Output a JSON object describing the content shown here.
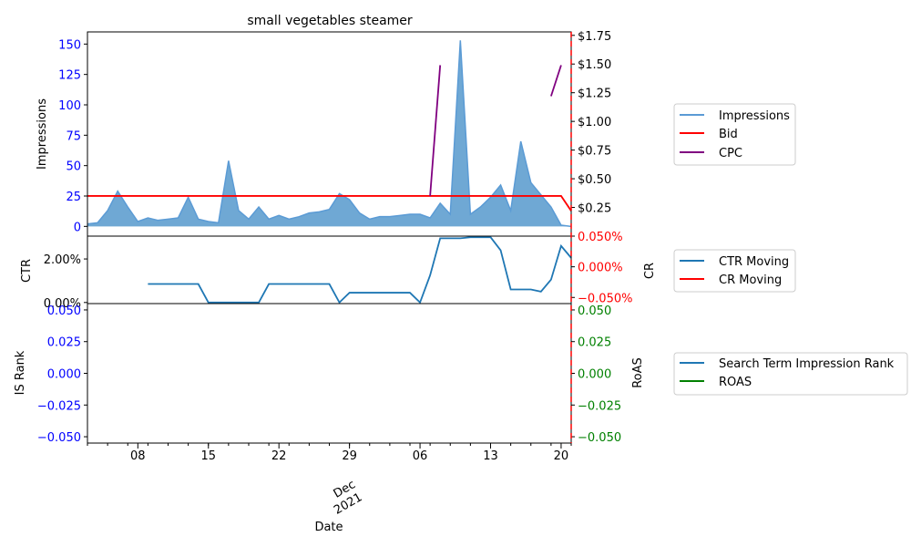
{
  "chart_data": [
    {
      "type": "area",
      "title": "small vegetables steamer",
      "ylabel": "Impressions",
      "y2label": "",
      "ylim": [
        -8,
        160
      ],
      "y2lim": [
        0.0,
        1.78
      ],
      "yticks": [
        "0",
        "25",
        "50",
        "75",
        "100",
        "125",
        "150"
      ],
      "y2ticks": [
        "$0.25",
        "$0.50",
        "$0.75",
        "$1.00",
        "$1.25",
        "$1.50",
        "$1.75"
      ],
      "tick_color": "blue",
      "legend": [
        "Impressions",
        "Bid",
        "CPC"
      ],
      "legend_position": "right",
      "series": [
        {
          "name": "Impressions",
          "color": "#5b9bd5",
          "fill": "#6fa8d4",
          "dates": [
            "2021-11-03",
            "2021-11-04",
            "2021-11-05",
            "2021-11-06",
            "2021-11-07",
            "2021-11-08",
            "2021-11-09",
            "2021-11-10",
            "2021-11-11",
            "2021-11-12",
            "2021-11-13",
            "2021-11-14",
            "2021-11-15",
            "2021-11-16",
            "2021-11-17",
            "2021-11-18",
            "2021-11-19",
            "2021-11-20",
            "2021-11-21",
            "2021-11-22",
            "2021-11-23",
            "2021-11-24",
            "2021-11-25",
            "2021-11-26",
            "2021-11-27",
            "2021-11-28",
            "2021-11-29",
            "2021-11-30",
            "2021-12-01",
            "2021-12-02",
            "2021-12-03",
            "2021-12-04",
            "2021-12-05",
            "2021-12-06",
            "2021-12-07",
            "2021-12-08",
            "2021-12-09",
            "2021-12-10",
            "2021-12-11",
            "2021-12-12",
            "2021-12-13",
            "2021-12-14",
            "2021-12-15",
            "2021-12-16",
            "2021-12-17",
            "2021-12-18",
            "2021-12-19",
            "2021-12-20",
            "2021-12-21"
          ],
          "values": [
            2,
            3,
            13,
            29,
            16,
            4,
            7,
            5,
            6,
            7,
            24,
            6,
            4,
            3,
            54,
            13,
            6,
            16,
            6,
            9,
            6,
            8,
            11,
            12,
            14,
            27,
            22,
            11,
            6,
            8,
            8,
            9,
            10,
            10,
            7,
            19,
            10,
            153,
            10,
            16,
            24,
            34,
            13,
            70,
            36,
            26,
            16,
            1,
            0
          ]
        },
        {
          "name": "Bid",
          "color": "#ff0000",
          "dates": [
            "2021-11-03",
            "2021-12-20",
            "2021-12-21"
          ],
          "values": [
            0.35,
            0.35,
            0.22
          ]
        },
        {
          "name": "CPC",
          "color": "#800080",
          "segments": [
            {
              "dates": [
                "2021-12-07",
                "2021-12-08"
              ],
              "values": [
                0.35,
                1.49
              ]
            },
            {
              "dates": [
                "2021-12-19",
                "2021-12-20"
              ],
              "values": [
                1.22,
                1.49
              ]
            }
          ]
        }
      ]
    },
    {
      "type": "line",
      "ylabel": "CTR",
      "y2label": "CR",
      "ylim": [
        -0.0005,
        0.0305
      ],
      "y2lim": [
        -0.0006,
        0.0005
      ],
      "yticks": [
        "0.00%",
        "2.00%"
      ],
      "y2ticks": [
        "−0.050%",
        "0.000%",
        "0.050%"
      ],
      "y2_tick_color": "red",
      "legend": [
        "CTR Moving",
        "CR Moving"
      ],
      "legend_position": "right",
      "series": [
        {
          "name": "CTR Moving",
          "color": "#1f77b4",
          "dates": [
            "2021-11-09",
            "2021-11-10",
            "2021-11-11",
            "2021-11-12",
            "2021-11-13",
            "2021-11-14",
            "2021-11-15",
            "2021-11-16",
            "2021-11-17",
            "2021-11-18",
            "2021-11-19",
            "2021-11-20",
            "2021-11-21",
            "2021-11-22",
            "2021-11-23",
            "2021-11-24",
            "2021-11-25",
            "2021-11-26",
            "2021-11-27",
            "2021-11-28",
            "2021-11-29",
            "2021-11-30",
            "2021-12-01",
            "2021-12-02",
            "2021-12-03",
            "2021-12-04",
            "2021-12-05",
            "2021-12-06",
            "2021-12-07",
            "2021-12-08",
            "2021-12-09",
            "2021-12-10",
            "2021-12-11",
            "2021-12-12",
            "2021-12-13",
            "2021-12-14",
            "2021-12-15",
            "2021-12-16",
            "2021-12-17",
            "2021-12-18",
            "2021-12-19",
            "2021-12-20",
            "2021-12-21"
          ],
          "values": [
            0.0085,
            0.0085,
            0.0085,
            0.0085,
            0.0085,
            0.0085,
            0.0,
            0.0,
            0.0,
            0.0,
            0.0,
            0.0,
            0.0085,
            0.0085,
            0.0085,
            0.0085,
            0.0085,
            0.0085,
            0.0085,
            0.0,
            0.0045,
            0.0045,
            0.0045,
            0.0045,
            0.0045,
            0.0045,
            0.0045,
            0.0,
            0.0125,
            0.0295,
            0.0295,
            0.0295,
            0.03,
            0.03,
            0.03,
            0.024,
            0.006,
            0.006,
            0.006,
            0.005,
            0.0105,
            0.026,
            0.0205
          ]
        },
        {
          "name": "CR Moving",
          "color": "#ff0000",
          "dates": [],
          "values": []
        }
      ]
    },
    {
      "type": "line",
      "ylabel": "IS Rank",
      "y2label": "RoAS",
      "ylim": [
        -0.055,
        0.055
      ],
      "y2lim": [
        -0.055,
        0.055
      ],
      "yticks": [
        "−0.050",
        "−0.025",
        "0.000",
        "0.025",
        "0.050"
      ],
      "y2ticks": [
        "−0.050",
        "−0.025",
        "0.000",
        "0.025",
        "0.050"
      ],
      "tick_color": "blue",
      "y2_tick_color": "green",
      "legend": [
        "Search Term Impression Rank",
        "ROAS"
      ],
      "legend_position": "right",
      "series": [
        {
          "name": "Search Term Impression Rank",
          "color": "#1f77b4",
          "dates": [],
          "values": []
        },
        {
          "name": "ROAS",
          "color": "#008000",
          "dates": [],
          "values": []
        }
      ],
      "xlabel": "Date",
      "xticks": [
        {
          "date": "2021-11-08",
          "label": "08"
        },
        {
          "date": "2021-11-15",
          "label": "15"
        },
        {
          "date": "2021-11-22",
          "label": "22"
        },
        {
          "date": "2021-11-29",
          "label": "29"
        },
        {
          "date": "2021-12-06",
          "label": "06"
        },
        {
          "date": "2021-12-13",
          "label": "13"
        },
        {
          "date": "2021-12-20",
          "label": "20"
        }
      ],
      "month_label": [
        "Dec",
        "2021"
      ]
    }
  ],
  "colors": {
    "impressions": "#5b9bd5",
    "bid": "#ff0000",
    "cpc": "#800080",
    "ctr": "#1f77b4",
    "roas": "#008000",
    "blue_ticks": "#0000ff",
    "red_ticks": "#ff0000",
    "green_ticks": "#008000"
  }
}
